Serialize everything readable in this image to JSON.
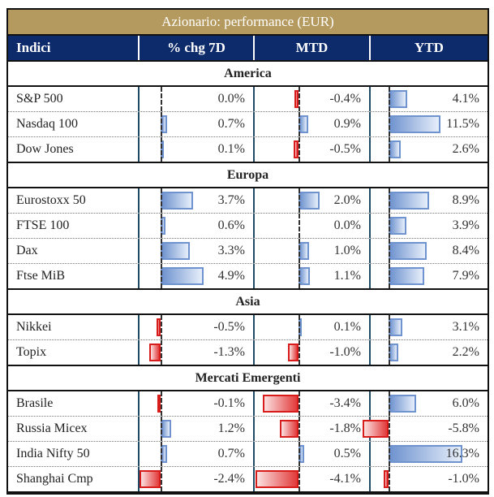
{
  "title": "Azionario: performance (EUR)",
  "headers": [
    "Indici",
    "% chg 7D",
    "MTD",
    "YTD"
  ],
  "colors": {
    "title_bg": "#b49a5e",
    "header_bg": "#0d2a6b",
    "positive": "#6f93cf",
    "negative": "#e23a3a"
  },
  "sections": [
    {
      "name": "America",
      "rows": [
        {
          "name": "S&P 500",
          "d7": 0.0,
          "mtd": -0.4,
          "ytd": 4.1,
          "d7_label": "0.0%",
          "mtd_label": "-0.4%",
          "ytd_label": "4.1%"
        },
        {
          "name": "Nasdaq 100",
          "d7": 0.7,
          "mtd": 0.9,
          "ytd": 11.5,
          "d7_label": "0.7%",
          "mtd_label": "0.9%",
          "ytd_label": "11.5%"
        },
        {
          "name": "Dow Jones",
          "d7": 0.1,
          "mtd": -0.5,
          "ytd": 2.6,
          "d7_label": "0.1%",
          "mtd_label": "-0.5%",
          "ytd_label": "2.6%"
        }
      ]
    },
    {
      "name": "Europa",
      "rows": [
        {
          "name": "Eurostoxx 50",
          "d7": 3.7,
          "mtd": 2.0,
          "ytd": 8.9,
          "d7_label": "3.7%",
          "mtd_label": "2.0%",
          "ytd_label": "8.9%"
        },
        {
          "name": "FTSE 100",
          "d7": 0.6,
          "mtd": 0.0,
          "ytd": 3.9,
          "d7_label": "0.6%",
          "mtd_label": "0.0%",
          "ytd_label": "3.9%"
        },
        {
          "name": "Dax",
          "d7": 3.3,
          "mtd": 1.0,
          "ytd": 8.4,
          "d7_label": "3.3%",
          "mtd_label": "1.0%",
          "ytd_label": "8.4%"
        },
        {
          "name": "Ftse MiB",
          "d7": 4.9,
          "mtd": 1.1,
          "ytd": 7.9,
          "d7_label": "4.9%",
          "mtd_label": "1.1%",
          "ytd_label": "7.9%"
        }
      ]
    },
    {
      "name": "Asia",
      "rows": [
        {
          "name": "Nikkei",
          "d7": -0.5,
          "mtd": 0.1,
          "ytd": 3.1,
          "d7_label": "-0.5%",
          "mtd_label": "0.1%",
          "ytd_label": "3.1%"
        },
        {
          "name": "Topix",
          "d7": -1.3,
          "mtd": -1.0,
          "ytd": 2.2,
          "d7_label": "-1.3%",
          "mtd_label": "-1.0%",
          "ytd_label": "2.2%"
        }
      ]
    },
    {
      "name": "Mercati Emergenti",
      "rows": [
        {
          "name": "Brasile",
          "d7": -0.1,
          "mtd": -3.4,
          "ytd": 6.0,
          "d7_label": "-0.1%",
          "mtd_label": "-3.4%",
          "ytd_label": "6.0%"
        },
        {
          "name": "Russia Micex",
          "d7": 1.2,
          "mtd": -1.8,
          "ytd": -5.8,
          "d7_label": "1.2%",
          "mtd_label": "-1.8%",
          "ytd_label": "-5.8%"
        },
        {
          "name": "India Nifty 50",
          "d7": 0.7,
          "mtd": 0.5,
          "ytd": 16.3,
          "d7_label": "0.7%",
          "mtd_label": "0.5%",
          "ytd_label": "16.3%"
        },
        {
          "name": "Shanghai Cmp",
          "d7": -2.4,
          "mtd": -4.1,
          "ytd": -1.0,
          "d7_label": "-2.4%",
          "mtd_label": "-4.1%",
          "ytd_label": "-1.0%"
        }
      ]
    }
  ]
}
